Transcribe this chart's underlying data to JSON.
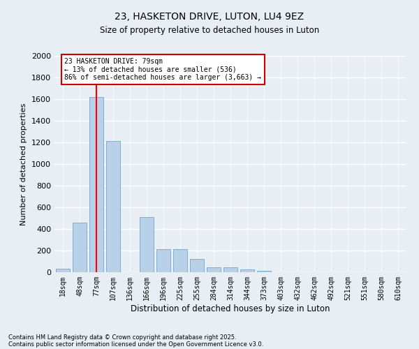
{
  "title1": "23, HASKETON DRIVE, LUTON, LU4 9EZ",
  "title2": "Size of property relative to detached houses in Luton",
  "xlabel": "Distribution of detached houses by size in Luton",
  "ylabel": "Number of detached properties",
  "categories": [
    "18sqm",
    "48sqm",
    "77sqm",
    "107sqm",
    "136sqm",
    "166sqm",
    "196sqm",
    "225sqm",
    "255sqm",
    "284sqm",
    "314sqm",
    "344sqm",
    "373sqm",
    "403sqm",
    "432sqm",
    "462sqm",
    "492sqm",
    "521sqm",
    "551sqm",
    "580sqm",
    "610sqm"
  ],
  "values": [
    30,
    460,
    1620,
    1210,
    0,
    510,
    215,
    215,
    125,
    45,
    45,
    25,
    10,
    0,
    0,
    0,
    0,
    0,
    0,
    0,
    0
  ],
  "bar_color": "#b8d0e8",
  "bar_edge_color": "#7aafd4",
  "red_line_x": 2,
  "annotation_line1": "23 HASKETON DRIVE: 79sqm",
  "annotation_line2": "← 13% of detached houses are smaller (536)",
  "annotation_line3": "86% of semi-detached houses are larger (3,663) →",
  "annotation_box_color": "#ffffff",
  "annotation_box_edge_color": "#cc0000",
  "ylim": [
    0,
    2000
  ],
  "yticks": [
    0,
    200,
    400,
    600,
    800,
    1000,
    1200,
    1400,
    1600,
    1800,
    2000
  ],
  "footer1": "Contains HM Land Registry data © Crown copyright and database right 2025.",
  "footer2": "Contains public sector information licensed under the Open Government Licence v3.0.",
  "bg_color": "#e8eef4",
  "plot_bg_color": "#e8eef4"
}
